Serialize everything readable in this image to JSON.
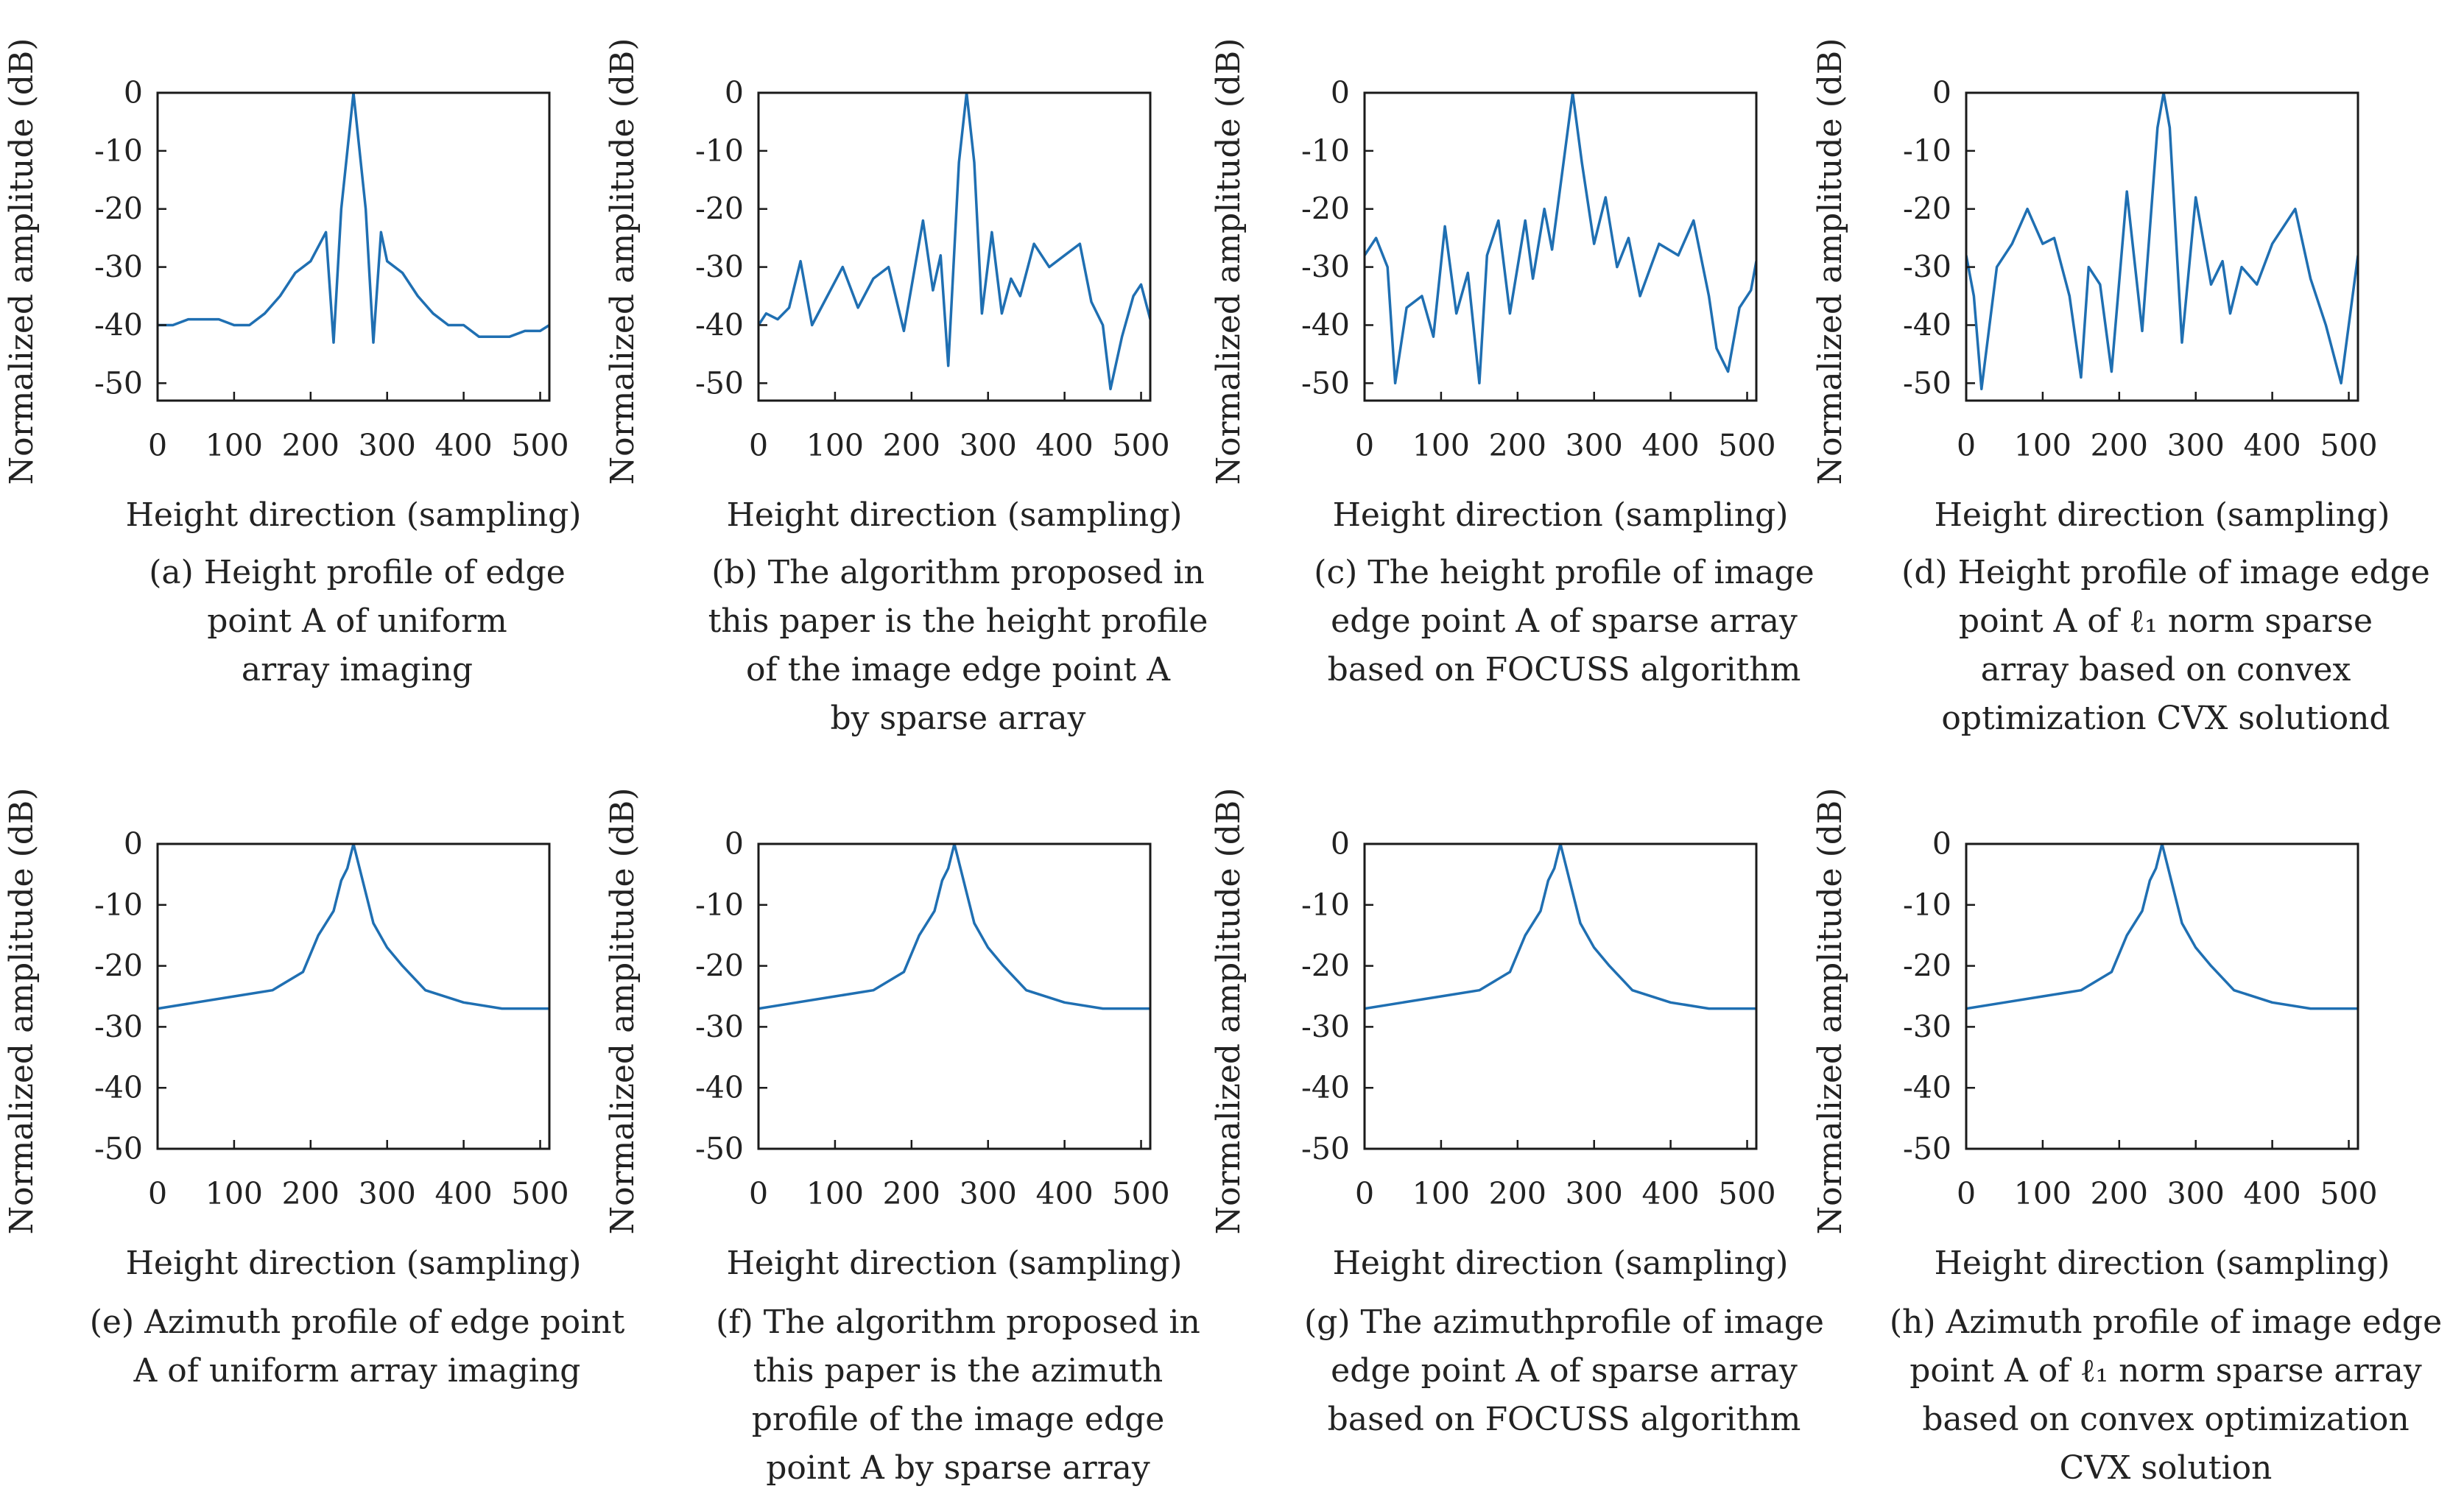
{
  "colors": {
    "line": "#1f6fb2",
    "frame": "#1a1a1a",
    "text": "#222222"
  },
  "shared": {
    "xlabel": "Height direction (sampling)",
    "ylabel": "Normalized amplitude (dB)",
    "xticks": [
      "0",
      "100",
      "200",
      "300",
      "400",
      "500"
    ],
    "yticks": [
      "0",
      "-10",
      "-20",
      "-30",
      "-40",
      "-50"
    ]
  },
  "chart_data": [
    {
      "type": "line",
      "panel": "a",
      "caption": [
        "(a) Height profile of edge",
        "point A of uniform",
        "array imaging"
      ],
      "xlabel": "Height direction (sampling)",
      "ylabel": "Normalized amplitude (dB)",
      "xlim": [
        0,
        512
      ],
      "ylim": [
        -53,
        0
      ],
      "grid": false,
      "x": [
        0,
        20,
        40,
        60,
        80,
        100,
        120,
        140,
        160,
        180,
        200,
        220,
        230,
        240,
        256,
        272,
        282,
        292,
        300,
        320,
        340,
        360,
        380,
        400,
        420,
        440,
        460,
        480,
        500,
        512
      ],
      "y": [
        -40,
        -40,
        -39,
        -39,
        -39,
        -40,
        -40,
        -38,
        -35,
        -31,
        -29,
        -24,
        -43,
        -20,
        0,
        -20,
        -43,
        -24,
        -29,
        -31,
        -35,
        -38,
        -40,
        -40,
        -42,
        -42,
        -42,
        -41,
        -41,
        -40
      ]
    },
    {
      "type": "line",
      "panel": "b",
      "caption": [
        "(b) The algorithm proposed in",
        "this paper is the height profile",
        "of the image edge point A",
        "by sparse array"
      ],
      "xlabel": "Height direction (sampling)",
      "ylabel": "Normalized amplitude (dB)",
      "xlim": [
        0,
        512
      ],
      "ylim": [
        -53,
        0
      ],
      "grid": false,
      "x": [
        0,
        10,
        25,
        40,
        55,
        70,
        90,
        110,
        130,
        150,
        170,
        190,
        215,
        228,
        238,
        248,
        262,
        272,
        282,
        292,
        305,
        318,
        330,
        342,
        360,
        380,
        400,
        420,
        435,
        450,
        460,
        475,
        490,
        500,
        512
      ],
      "y": [
        -40,
        -38,
        -39,
        -37,
        -29,
        -40,
        -35,
        -30,
        -37,
        -32,
        -30,
        -41,
        -22,
        -34,
        -28,
        -47,
        -12,
        0,
        -12,
        -38,
        -24,
        -38,
        -32,
        -35,
        -26,
        -30,
        -28,
        -26,
        -36,
        -40,
        -51,
        -42,
        -35,
        -33,
        -39
      ]
    },
    {
      "type": "line",
      "panel": "c",
      "caption": [
        "(c) The height profile of image",
        "edge point A of sparse array",
        "based on FOCUSS algorithm"
      ],
      "xlabel": "Height direction (sampling)",
      "ylabel": "Normalized amplitude (dB)",
      "xlim": [
        0,
        512
      ],
      "ylim": [
        -53,
        0
      ],
      "grid": false,
      "x": [
        0,
        15,
        30,
        40,
        55,
        75,
        90,
        105,
        120,
        135,
        150,
        160,
        175,
        190,
        210,
        220,
        235,
        245,
        260,
        272,
        284,
        300,
        315,
        330,
        345,
        360,
        385,
        410,
        430,
        450,
        460,
        475,
        490,
        505,
        512
      ],
      "y": [
        -28,
        -25,
        -30,
        -50,
        -37,
        -35,
        -42,
        -23,
        -38,
        -31,
        -50,
        -28,
        -22,
        -38,
        -22,
        -32,
        -20,
        -27,
        -12,
        0,
        -12,
        -26,
        -18,
        -30,
        -25,
        -35,
        -26,
        -28,
        -22,
        -35,
        -44,
        -48,
        -37,
        -34,
        -29
      ]
    },
    {
      "type": "line",
      "panel": "d",
      "caption": [
        "(d) Height profile of image edge",
        "point A of ℓ₁ norm sparse",
        "array based on convex",
        "optimization CVX solutiond"
      ],
      "xlabel": "Height direction (sampling)",
      "ylabel": "Normalized amplitude (dB)",
      "xlim": [
        0,
        512
      ],
      "ylim": [
        -53,
        0
      ],
      "grid": false,
      "x": [
        0,
        10,
        20,
        40,
        60,
        80,
        100,
        115,
        135,
        150,
        160,
        175,
        190,
        210,
        230,
        250,
        258,
        266,
        282,
        300,
        320,
        335,
        345,
        360,
        380,
        400,
        430,
        450,
        470,
        490,
        512
      ],
      "y": [
        -28,
        -35,
        -51,
        -30,
        -26,
        -20,
        -26,
        -25,
        -35,
        -49,
        -30,
        -33,
        -48,
        -17,
        -41,
        -6,
        0,
        -6,
        -43,
        -18,
        -33,
        -29,
        -38,
        -30,
        -33,
        -26,
        -20,
        -32,
        -40,
        -50,
        -28
      ]
    },
    {
      "type": "line",
      "panel": "e",
      "caption": [
        "(e) Azimuth profile of edge point",
        "A of uniform array imaging"
      ],
      "xlabel": "Height direction (sampling)",
      "ylabel": "Normalized amplitude (dB)",
      "xlim": [
        0,
        512
      ],
      "ylim": [
        -50,
        0
      ],
      "grid": false,
      "x": [
        0,
        50,
        100,
        150,
        190,
        210,
        230,
        240,
        248,
        256,
        264,
        272,
        282,
        300,
        320,
        350,
        400,
        450,
        500,
        512
      ],
      "y": [
        -27,
        -26,
        -25,
        -24,
        -21,
        -15,
        -11,
        -6,
        -4,
        0,
        -4,
        -8,
        -13,
        -17,
        -20,
        -24,
        -26,
        -27,
        -27,
        -27
      ]
    },
    {
      "type": "line",
      "panel": "f",
      "caption": [
        "(f) The algorithm proposed in",
        "this paper is the azimuth",
        "profile of the image edge",
        "point A by sparse array"
      ],
      "xlabel": "Height direction (sampling)",
      "ylabel": "Normalized amplitude (dB)",
      "xlim": [
        0,
        512
      ],
      "ylim": [
        -50,
        0
      ],
      "grid": false,
      "x": [
        0,
        50,
        100,
        150,
        190,
        210,
        230,
        240,
        248,
        256,
        264,
        272,
        282,
        300,
        320,
        350,
        400,
        450,
        500,
        512
      ],
      "y": [
        -27,
        -26,
        -25,
        -24,
        -21,
        -15,
        -11,
        -6,
        -4,
        0,
        -4,
        -8,
        -13,
        -17,
        -20,
        -24,
        -26,
        -27,
        -27,
        -27
      ]
    },
    {
      "type": "line",
      "panel": "g",
      "caption": [
        "(g) The azimuthprofile of image",
        "edge point A of sparse array",
        "based on FOCUSS algorithm"
      ],
      "xlabel": "Height direction (sampling)",
      "ylabel": "Normalized amplitude (dB)",
      "xlim": [
        0,
        512
      ],
      "ylim": [
        -50,
        0
      ],
      "grid": false,
      "x": [
        0,
        50,
        100,
        150,
        190,
        210,
        230,
        240,
        248,
        256,
        264,
        272,
        282,
        300,
        320,
        350,
        400,
        450,
        500,
        512
      ],
      "y": [
        -27,
        -26,
        -25,
        -24,
        -21,
        -15,
        -11,
        -6,
        -4,
        0,
        -4,
        -8,
        -13,
        -17,
        -20,
        -24,
        -26,
        -27,
        -27,
        -27
      ]
    },
    {
      "type": "line",
      "panel": "h",
      "caption": [
        "(h) Azimuth profile of image edge",
        "point A of ℓ₁ norm sparse array",
        "based on convex optimization",
        "CVX solution"
      ],
      "xlabel": "Height direction (sampling)",
      "ylabel": "Normalized amplitude (dB)",
      "xlim": [
        0,
        512
      ],
      "ylim": [
        -50,
        0
      ],
      "grid": false,
      "x": [
        0,
        50,
        100,
        150,
        190,
        210,
        230,
        240,
        248,
        256,
        264,
        272,
        282,
        300,
        320,
        350,
        400,
        450,
        500,
        512
      ],
      "y": [
        -27,
        -26,
        -25,
        -24,
        -21,
        -15,
        -11,
        -6,
        -4,
        0,
        -4,
        -8,
        -13,
        -17,
        -20,
        -24,
        -26,
        -27,
        -27,
        -27
      ]
    }
  ]
}
